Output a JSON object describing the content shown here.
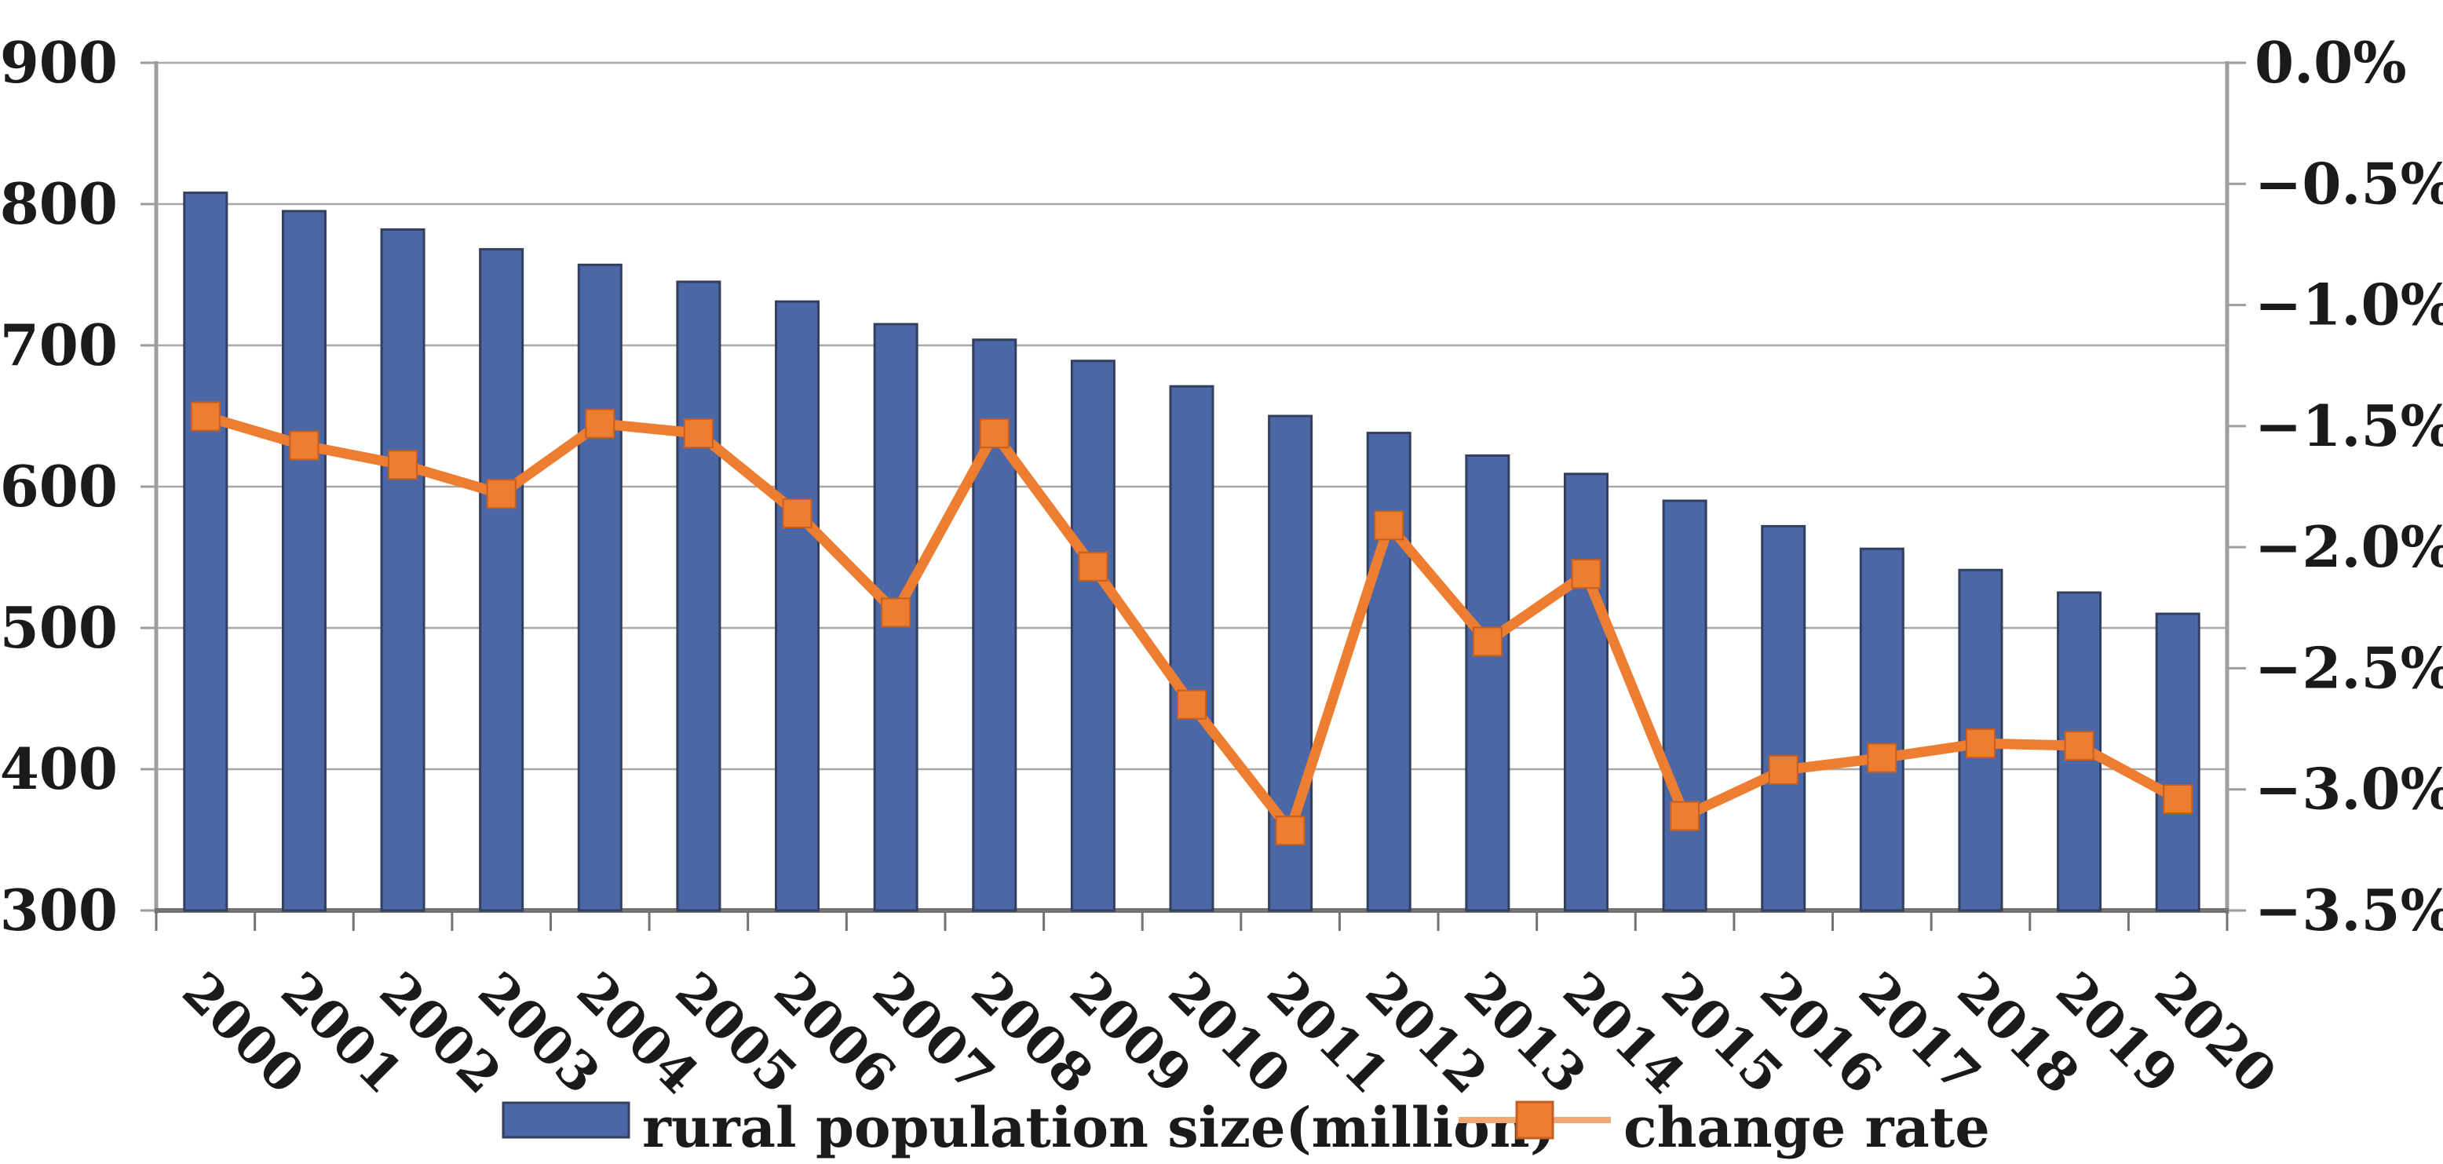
{
  "chart_data": {
    "type": "bar",
    "subtype": "combo-bar-line",
    "title": "",
    "categories": [
      "2000",
      "2001",
      "2002",
      "2003",
      "2004",
      "2005",
      "2006",
      "2007",
      "2008",
      "2009",
      "2010",
      "2011",
      "2012",
      "2013",
      "2014",
      "2015",
      "2016",
      "2017",
      "2018",
      "2019",
      "2020"
    ],
    "series": [
      {
        "name": "rural population size(million)",
        "type": "bar",
        "axis": "left",
        "color": "#4C67A5",
        "border_color": "#333F5F",
        "values": [
          808,
          795,
          782,
          768,
          757,
          745,
          731,
          715,
          704,
          689,
          671,
          650,
          638,
          622,
          609,
          590,
          572,
          556,
          541,
          525,
          510
        ]
      },
      {
        "name": "change rate",
        "type": "line",
        "axis": "right",
        "color": "#ED7D31",
        "marker": "square",
        "marker_border_color": "#C55F1F",
        "values": [
          -1.46,
          -1.58,
          -1.66,
          -1.78,
          -1.49,
          -1.53,
          -1.86,
          -2.27,
          -1.53,
          -2.08,
          -2.65,
          -3.17,
          -1.91,
          -2.39,
          -2.11,
          -3.11,
          -2.92,
          -2.87,
          -2.81,
          -2.82,
          -3.04
        ]
      }
    ],
    "left_axis": {
      "min": 300,
      "max": 900,
      "tick_step": 100,
      "tick_labels": [
        "900",
        "800",
        "700",
        "600",
        "500",
        "400",
        "300"
      ]
    },
    "right_axis": {
      "min": -3.5,
      "max": 0,
      "tick_step": 0.5,
      "tick_labels": [
        "0.0%",
        "−0.5%",
        "−1.0%",
        "−1.5%",
        "−2.0%",
        "−2.5%",
        "−3.0%",
        "−3.5%"
      ]
    },
    "grid": "horizontal",
    "gridline_color": "#A8A8A8",
    "axis_line_color": "#9E9E9E",
    "bottom_axis_color": "#737373",
    "legend_position": "bottom"
  }
}
